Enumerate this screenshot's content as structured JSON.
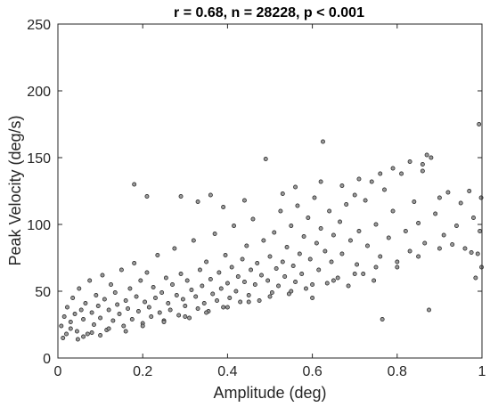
{
  "chart_data": {
    "type": "scatter",
    "title": "r = 0.68, n = 28228, p < 0.001",
    "xlabel": "Amplitude (deg)",
    "ylabel": "Peak Velocity (deg/s)",
    "xlim": [
      0,
      1
    ],
    "ylim": [
      0,
      250
    ],
    "xticks": [
      0,
      0.2,
      0.4,
      0.6,
      0.8,
      1
    ],
    "xtick_labels": [
      "0",
      "0.2",
      "0.4",
      "0.6",
      "0.8",
      "1"
    ],
    "yticks": [
      0,
      50,
      100,
      150,
      200,
      250
    ],
    "ytick_labels": [
      "0",
      "50",
      "100",
      "150",
      "200",
      "250"
    ],
    "grid": false,
    "legend": "none",
    "marker_face_color": "#9a9a9a",
    "marker_edge_color": "#202020",
    "series": [
      {
        "points": [
          [
            0.008,
            24
          ],
          [
            0.015,
            31
          ],
          [
            0.022,
            38
          ],
          [
            0.03,
            27
          ],
          [
            0.035,
            45
          ],
          [
            0.04,
            33
          ],
          [
            0.045,
            20
          ],
          [
            0.05,
            52
          ],
          [
            0.055,
            36
          ],
          [
            0.06,
            29
          ],
          [
            0.065,
            41
          ],
          [
            0.07,
            18
          ],
          [
            0.075,
            58
          ],
          [
            0.08,
            34
          ],
          [
            0.085,
            25
          ],
          [
            0.09,
            47
          ],
          [
            0.095,
            39
          ],
          [
            0.1,
            30
          ],
          [
            0.105,
            62
          ],
          [
            0.11,
            44
          ],
          [
            0.115,
            21
          ],
          [
            0.12,
            36
          ],
          [
            0.125,
            55
          ],
          [
            0.13,
            28
          ],
          [
            0.135,
            49
          ],
          [
            0.14,
            40
          ],
          [
            0.145,
            33
          ],
          [
            0.15,
            66
          ],
          [
            0.155,
            24
          ],
          [
            0.16,
            43
          ],
          [
            0.165,
            37
          ],
          [
            0.17,
            52
          ],
          [
            0.175,
            29
          ],
          [
            0.18,
            71
          ],
          [
            0.185,
            46
          ],
          [
            0.19,
            35
          ],
          [
            0.195,
            58
          ],
          [
            0.2,
            26
          ],
          [
            0.205,
            42
          ],
          [
            0.21,
            64
          ],
          [
            0.215,
            38
          ],
          [
            0.22,
            31
          ],
          [
            0.225,
            53
          ],
          [
            0.23,
            45
          ],
          [
            0.235,
            77
          ],
          [
            0.24,
            34
          ],
          [
            0.245,
            49
          ],
          [
            0.25,
            28
          ],
          [
            0.255,
            60
          ],
          [
            0.26,
            41
          ],
          [
            0.265,
            36
          ],
          [
            0.27,
            55
          ],
          [
            0.275,
            82
          ],
          [
            0.28,
            47
          ],
          [
            0.285,
            32
          ],
          [
            0.29,
            63
          ],
          [
            0.295,
            44
          ],
          [
            0.3,
            39
          ],
          [
            0.305,
            58
          ],
          [
            0.31,
            30
          ],
          [
            0.315,
            51
          ],
          [
            0.32,
            88
          ],
          [
            0.325,
            46
          ],
          [
            0.33,
            37
          ],
          [
            0.335,
            66
          ],
          [
            0.34,
            54
          ],
          [
            0.345,
            41
          ],
          [
            0.35,
            72
          ],
          [
            0.355,
            35
          ],
          [
            0.36,
            59
          ],
          [
            0.365,
            48
          ],
          [
            0.37,
            93
          ],
          [
            0.375,
            43
          ],
          [
            0.38,
            64
          ],
          [
            0.385,
            52
          ],
          [
            0.39,
            38
          ],
          [
            0.395,
            77
          ],
          [
            0.4,
            56
          ],
          [
            0.405,
            45
          ],
          [
            0.41,
            68
          ],
          [
            0.415,
            99
          ],
          [
            0.42,
            50
          ],
          [
            0.425,
            61
          ],
          [
            0.43,
            42
          ],
          [
            0.435,
            74
          ],
          [
            0.44,
            57
          ],
          [
            0.445,
            84
          ],
          [
            0.45,
            47
          ],
          [
            0.455,
            66
          ],
          [
            0.46,
            104
          ],
          [
            0.465,
            55
          ],
          [
            0.47,
            71
          ],
          [
            0.475,
            43
          ],
          [
            0.48,
            62
          ],
          [
            0.485,
            88
          ],
          [
            0.49,
            149
          ],
          [
            0.495,
            58
          ],
          [
            0.5,
            76
          ],
          [
            0.505,
            49
          ],
          [
            0.51,
            94
          ],
          [
            0.515,
            67
          ],
          [
            0.52,
            54
          ],
          [
            0.525,
            110
          ],
          [
            0.53,
            72
          ],
          [
            0.535,
            61
          ],
          [
            0.54,
            83
          ],
          [
            0.545,
            48
          ],
          [
            0.55,
            99
          ],
          [
            0.555,
            69
          ],
          [
            0.56,
            57
          ],
          [
            0.565,
            114
          ],
          [
            0.57,
            78
          ],
          [
            0.575,
            63
          ],
          [
            0.58,
            91
          ],
          [
            0.585,
            52
          ],
          [
            0.59,
            105
          ],
          [
            0.595,
            74
          ],
          [
            0.6,
            45
          ],
          [
            0.605,
            120
          ],
          [
            0.61,
            86
          ],
          [
            0.615,
            66
          ],
          [
            0.62,
            97
          ],
          [
            0.625,
            162
          ],
          [
            0.63,
            80
          ],
          [
            0.635,
            56
          ],
          [
            0.64,
            110
          ],
          [
            0.645,
            72
          ],
          [
            0.65,
            92
          ],
          [
            0.66,
            60
          ],
          [
            0.665,
            102
          ],
          [
            0.67,
            78
          ],
          [
            0.68,
            115
          ],
          [
            0.685,
            54
          ],
          [
            0.69,
            88
          ],
          [
            0.7,
            122
          ],
          [
            0.705,
            70
          ],
          [
            0.71,
            95
          ],
          [
            0.72,
            63
          ],
          [
            0.725,
            118
          ],
          [
            0.73,
            84
          ],
          [
            0.74,
            132
          ],
          [
            0.745,
            58
          ],
          [
            0.75,
            100
          ],
          [
            0.76,
            76
          ],
          [
            0.765,
            29
          ],
          [
            0.77,
            126
          ],
          [
            0.78,
            90
          ],
          [
            0.79,
            110
          ],
          [
            0.8,
            68
          ],
          [
            0.81,
            138
          ],
          [
            0.82,
            95
          ],
          [
            0.83,
            80
          ],
          [
            0.84,
            117
          ],
          [
            0.85,
            101
          ],
          [
            0.86,
            145
          ],
          [
            0.865,
            86
          ],
          [
            0.87,
            152
          ],
          [
            0.875,
            36
          ],
          [
            0.88,
            150
          ],
          [
            0.89,
            108
          ],
          [
            0.9,
            120
          ],
          [
            0.91,
            92
          ],
          [
            0.92,
            124
          ],
          [
            0.93,
            85
          ],
          [
            0.94,
            99
          ],
          [
            0.95,
            116
          ],
          [
            0.96,
            82
          ],
          [
            0.97,
            125
          ],
          [
            0.975,
            79
          ],
          [
            0.98,
            105
          ],
          [
            0.985,
            60
          ],
          [
            0.99,
            78
          ],
          [
            0.993,
            175
          ],
          [
            0.995,
            95
          ],
          [
            0.998,
            120
          ],
          [
            0.999,
            68
          ],
          [
            0.012,
            15
          ],
          [
            0.02,
            18
          ],
          [
            0.03,
            22
          ],
          [
            0.047,
            14
          ],
          [
            0.06,
            16
          ],
          [
            0.08,
            19
          ],
          [
            0.1,
            17
          ],
          [
            0.12,
            22
          ],
          [
            0.16,
            20
          ],
          [
            0.2,
            24
          ],
          [
            0.25,
            27
          ],
          [
            0.3,
            31
          ],
          [
            0.35,
            34
          ],
          [
            0.4,
            38
          ],
          [
            0.45,
            42
          ],
          [
            0.5,
            46
          ],
          [
            0.55,
            50
          ],
          [
            0.6,
            55
          ],
          [
            0.65,
            58
          ],
          [
            0.7,
            63
          ],
          [
            0.75,
            68
          ],
          [
            0.8,
            72
          ],
          [
            0.85,
            76
          ],
          [
            0.9,
            82
          ],
          [
            0.18,
            130
          ],
          [
            0.21,
            121
          ],
          [
            0.29,
            121
          ],
          [
            0.33,
            117
          ],
          [
            0.36,
            122
          ],
          [
            0.39,
            113
          ],
          [
            0.44,
            118
          ],
          [
            0.53,
            123
          ],
          [
            0.56,
            128
          ],
          [
            0.62,
            132
          ],
          [
            0.67,
            129
          ],
          [
            0.71,
            134
          ],
          [
            0.76,
            138
          ],
          [
            0.79,
            142
          ],
          [
            0.83,
            147
          ],
          [
            0.86,
            140
          ]
        ]
      }
    ]
  }
}
